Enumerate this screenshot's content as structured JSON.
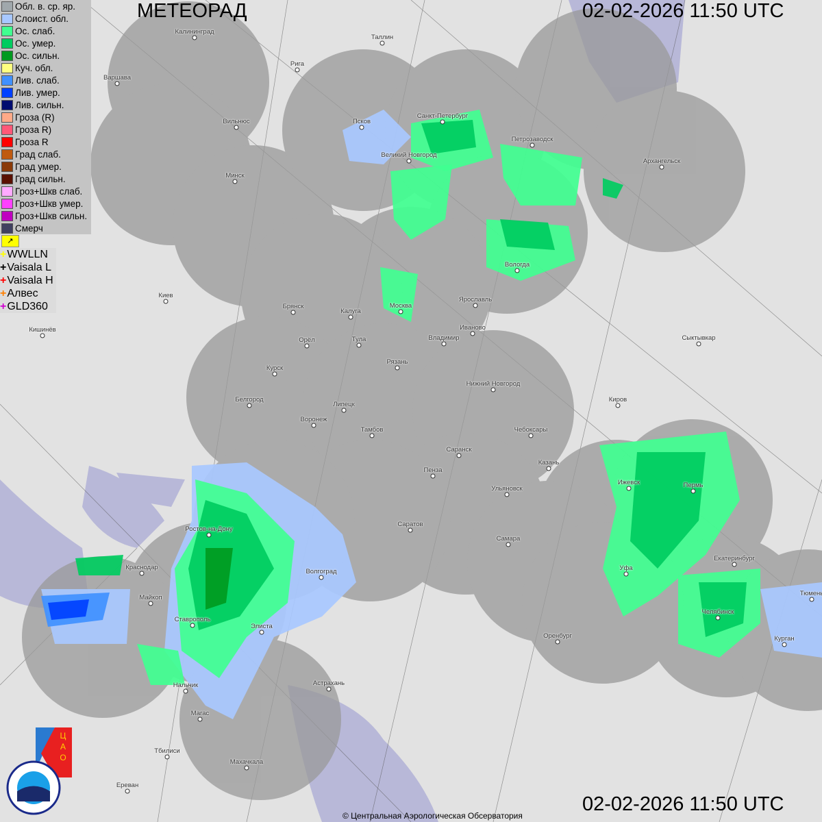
{
  "header": {
    "title": "МЕТЕОРАД",
    "timestamp_top": "02-02-2026  11:50 UTC",
    "timestamp_bottom": "02-02-2026  11:50 UTC"
  },
  "legend": [
    {
      "label": "Обл. в. ср. яр.",
      "color": "#a0a8ac"
    },
    {
      "label": "Слоист. обл.",
      "color": "#a8c8ff"
    },
    {
      "label": "Ос. слаб.",
      "color": "#40ff90"
    },
    {
      "label": "Ос. умер.",
      "color": "#00cc60"
    },
    {
      "label": "Ос. сильн.",
      "color": "#009a20"
    },
    {
      "label": "Куч. обл.",
      "color": "#ffff80"
    },
    {
      "label": "Лив. слаб.",
      "color": "#4090ff"
    },
    {
      "label": "Лив. умер.",
      "color": "#0040ff"
    },
    {
      "label": "Лив. сильн.",
      "color": "#000c70"
    },
    {
      "label": "Гроза (R)",
      "color": "#ffaa88"
    },
    {
      "label": "Гроза R)",
      "color": "#ff5878"
    },
    {
      "label": "Гроза R",
      "color": "#ff0000"
    },
    {
      "label": "Град слаб.",
      "color": "#c05a10"
    },
    {
      "label": "Град умер.",
      "color": "#8a3a08"
    },
    {
      "label": "Град сильн.",
      "color": "#5a1000"
    },
    {
      "label": "Гроз+Шкв слаб.",
      "color": "#ffaaff"
    },
    {
      "label": "Гроз+Шкв умер.",
      "color": "#ff40ff"
    },
    {
      "label": "Гроз+Шкв сильн.",
      "color": "#c000c0"
    },
    {
      "label": "Смерч",
      "color": "#404060"
    }
  ],
  "lightning": [
    {
      "label": "WWLLN",
      "color": "#ffff00"
    },
    {
      "label": "Vaisala L",
      "color": "#000000"
    },
    {
      "label": "Vaisala H",
      "color": "#ff0000"
    },
    {
      "label": "Алвес",
      "color": "#ff8000"
    },
    {
      "label": "GLD360",
      "color": "#d000d0"
    }
  ],
  "cities": [
    "Калининград",
    "Таллин",
    "Рига",
    "Варшава",
    "Вильнюс",
    "Псков",
    "Санкт-Петербург",
    "Великий Новгород",
    "Петрозаводск",
    "Архангельск",
    "Минск",
    "Вологда",
    "Киев",
    "Брянск",
    "Калуга",
    "Москва",
    "Ярославль",
    "Иваново",
    "Кишинёв",
    "Орёл",
    "Тула",
    "Владимир",
    "Сыктывкар",
    "Курск",
    "Рязань",
    "Нижний Новгород",
    "Белгород",
    "Липецк",
    "Киров",
    "Воронеж",
    "Тамбов",
    "Чебоксары",
    "Саранск",
    "Казань",
    "Пенза",
    "Ижевск",
    "Пермь",
    "Ульяновск",
    "Ростов-на-Дону",
    "Саратов",
    "Самара",
    "Екатеринбург",
    "Краснодар",
    "Волгоград",
    "Уфа",
    "Майкоп",
    "Тюмень",
    "Челябинск",
    "Ставрополь",
    "Элиста",
    "Оренбург",
    "Курган",
    "Нальчик",
    "Астрахань",
    "Магас",
    "Тбилиси",
    "Махачкала",
    "Ереван"
  ],
  "footer": {
    "copyright": "© Центральная Аэрологическая Обсерватория"
  },
  "logos": {
    "cao": "ЦАО 1941",
    "roshydromet": "РОСГИДРОМЕТ ROSHYDROMET"
  }
}
